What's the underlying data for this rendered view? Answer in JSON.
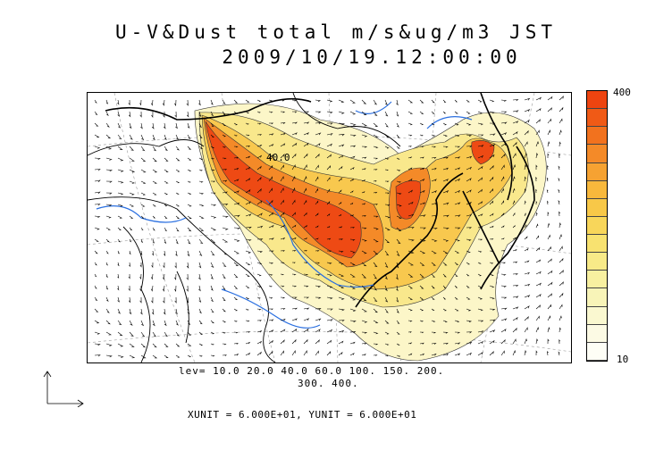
{
  "title": {
    "line1": "U-V&Dust total m/s&ug/m3 JST",
    "line2": "2009/10/19.12:00:00"
  },
  "map": {
    "contour_label": "40.0",
    "region": "East Asia",
    "show_coastlines": true,
    "show_rivers": true,
    "show_wind_vectors": true
  },
  "colorbar": {
    "max_label": "400",
    "min_label": "10",
    "colors": [
      "#ee4410",
      "#f05a16",
      "#f2721e",
      "#f48a28",
      "#f6a232",
      "#f8b83c",
      "#f8c848",
      "#f8d65a",
      "#f8e270",
      "#f8ea88",
      "#f8f0a0",
      "#f8f4b8",
      "#faf8d0",
      "#fcfae4",
      "#fefef6"
    ]
  },
  "legend": {
    "levels_line1": "lev= 10.0 20.0 40.0 60.0 100. 150. 200.",
    "levels_line2": "300. 400.",
    "units": "XUNIT = 6.000E+01, YUNIT = 6.000E+01"
  }
}
